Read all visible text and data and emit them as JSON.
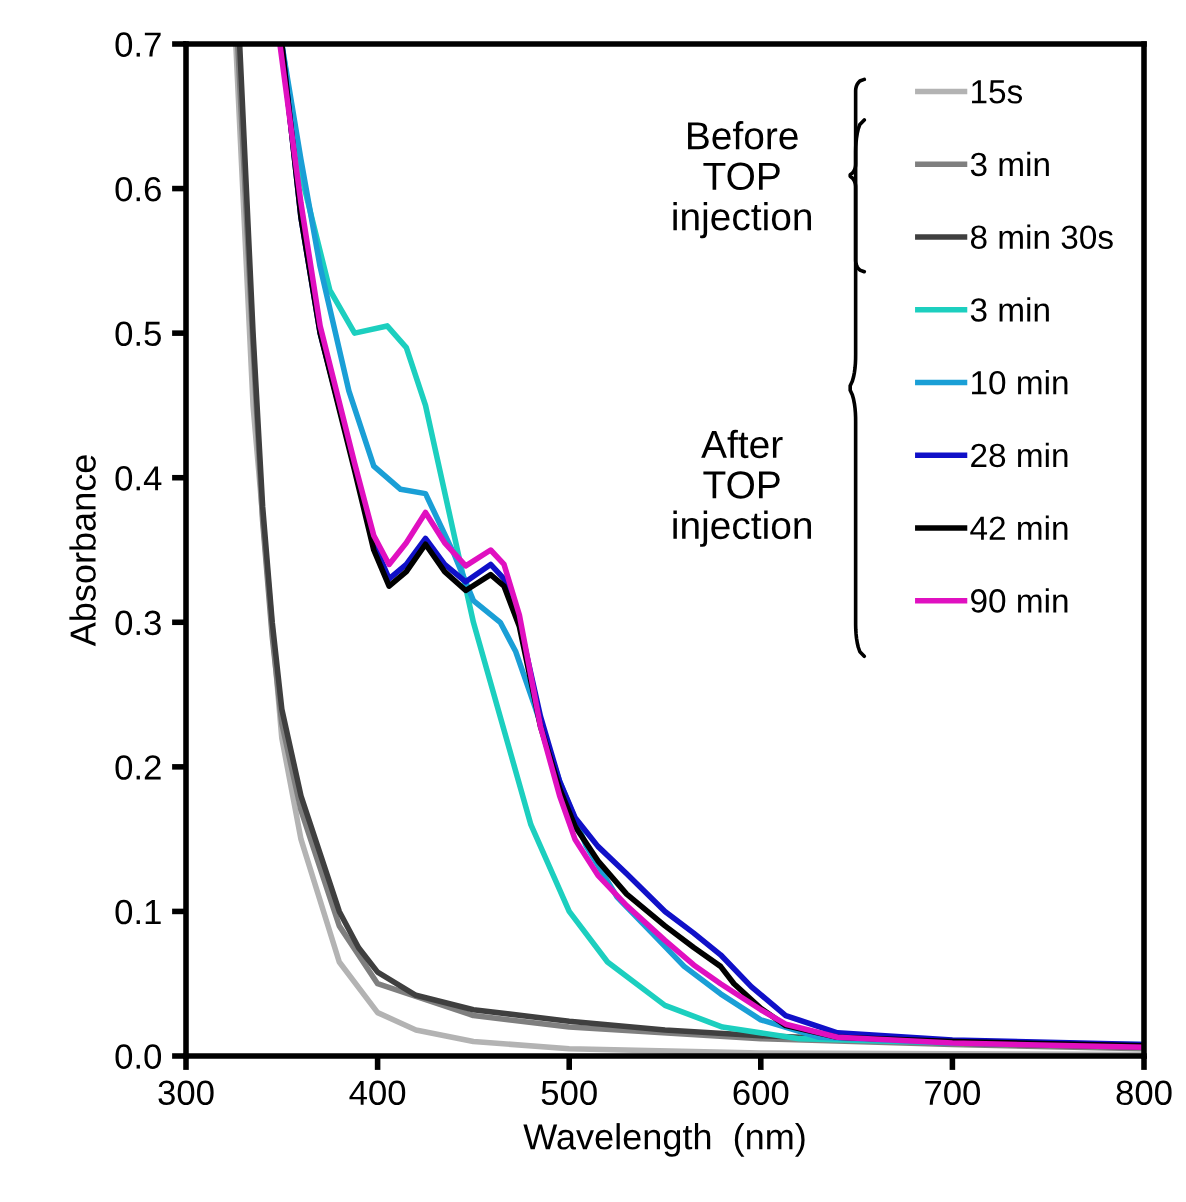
{
  "chart_data": {
    "type": "line",
    "xlabel": "Wavelength  (nm)",
    "ylabel": "Absorbance",
    "xlim": [
      300,
      800
    ],
    "xticks": [
      300,
      400,
      500,
      600,
      700,
      800
    ],
    "ylim": [
      0,
      0.7
    ],
    "yticks": [
      {
        "value": 0,
        "label": "0.0"
      },
      0.1,
      0.2,
      0.3,
      0.4,
      0.5,
      0.6,
      0.7
    ],
    "grid": false,
    "legend": "top right",
    "marker": "none",
    "line_style": "solid",
    "annotations": [
      "Before\nTOP\ninjection",
      "After\nTOP\ninjection"
    ],
    "series": [
      {
        "name": "15s",
        "color": "#b3b3b3",
        "x": [
          326,
          335,
          350,
          360,
          380,
          400,
          420,
          450,
          500,
          600,
          800
        ],
        "values": [
          0.7,
          0.45,
          0.22,
          0.15,
          0.065,
          0.03,
          0.018,
          0.01,
          0.005,
          0.002,
          0.001
        ]
      },
      {
        "name": "3 min",
        "color": "#7f7f7f",
        "x": [
          327,
          335,
          340,
          345,
          350,
          360,
          380,
          400,
          450,
          500,
          600,
          700,
          800
        ],
        "values": [
          0.7,
          0.49,
          0.37,
          0.29,
          0.23,
          0.17,
          0.09,
          0.05,
          0.028,
          0.02,
          0.012,
          0.008,
          0.005
        ]
      },
      {
        "name": "8 min 30s",
        "color": "#3f3f3f",
        "x": [
          328,
          335,
          340,
          345,
          350,
          360,
          370,
          380,
          390,
          400,
          420,
          450,
          500,
          550,
          600,
          700,
          800
        ],
        "values": [
          0.7,
          0.5,
          0.38,
          0.3,
          0.24,
          0.18,
          0.14,
          0.1,
          0.075,
          0.058,
          0.042,
          0.032,
          0.024,
          0.018,
          0.014,
          0.009,
          0.006
        ]
      },
      {
        "name": "3 min",
        "color": "#1ccfbf",
        "x": [
          350,
          360,
          375,
          388,
          405,
          415,
          425,
          440,
          450,
          465,
          480,
          500,
          520,
          550,
          580,
          620,
          700,
          800
        ],
        "values": [
          0.7,
          0.61,
          0.53,
          0.5,
          0.505,
          0.49,
          0.45,
          0.36,
          0.3,
          0.23,
          0.16,
          0.1,
          0.065,
          0.035,
          0.02,
          0.012,
          0.009,
          0.008
        ]
      },
      {
        "name": "10 min",
        "color": "#1a9fd6",
        "x": [
          350,
          360,
          370,
          385,
          398,
          412,
          425,
          440,
          450,
          464,
          472,
          482,
          495,
          509,
          525,
          544,
          560,
          579,
          600,
          630,
          700,
          800
        ],
        "values": [
          0.7,
          0.62,
          0.546,
          0.46,
          0.408,
          0.392,
          0.389,
          0.347,
          0.315,
          0.3,
          0.28,
          0.242,
          0.19,
          0.145,
          0.11,
          0.084,
          0.062,
          0.043,
          0.025,
          0.013,
          0.009,
          0.007
        ]
      },
      {
        "name": "28 min",
        "color": "#1010c8",
        "x": [
          350,
          360,
          370,
          388,
          398,
          406,
          415,
          425,
          435,
          446,
          459,
          466,
          474,
          485,
          495,
          503,
          515,
          530,
          550,
          565,
          579,
          595,
          613,
          640,
          700,
          800
        ],
        "values": [
          0.7,
          0.58,
          0.5,
          0.408,
          0.355,
          0.33,
          0.34,
          0.358,
          0.34,
          0.328,
          0.34,
          0.33,
          0.3,
          0.235,
          0.19,
          0.165,
          0.145,
          0.126,
          0.1,
          0.085,
          0.07,
          0.048,
          0.028,
          0.016,
          0.011,
          0.008
        ]
      },
      {
        "name": "42 min",
        "color": "#000000",
        "x": [
          350,
          360,
          370,
          388,
          398,
          406,
          415,
          425,
          435,
          446,
          459,
          466,
          474,
          485,
          495,
          503,
          515,
          530,
          550,
          565,
          579,
          586,
          600,
          613,
          640,
          700,
          800
        ],
        "values": [
          0.7,
          0.58,
          0.5,
          0.405,
          0.35,
          0.325,
          0.335,
          0.354,
          0.335,
          0.322,
          0.333,
          0.325,
          0.297,
          0.228,
          0.185,
          0.159,
          0.135,
          0.112,
          0.09,
          0.075,
          0.062,
          0.05,
          0.033,
          0.021,
          0.013,
          0.01,
          0.007
        ]
      },
      {
        "name": "90 min",
        "color": "#e010c0",
        "x": [
          349,
          360,
          370,
          388,
          398,
          406,
          415,
          425,
          435,
          446,
          459,
          466,
          474,
          485,
          495,
          503,
          515,
          530,
          550,
          565,
          579,
          600,
          613,
          640,
          700,
          800
        ],
        "values": [
          0.7,
          0.59,
          0.505,
          0.41,
          0.36,
          0.34,
          0.355,
          0.376,
          0.355,
          0.339,
          0.35,
          0.34,
          0.305,
          0.228,
          0.18,
          0.15,
          0.125,
          0.104,
          0.08,
          0.063,
          0.05,
          0.032,
          0.022,
          0.013,
          0.009,
          0.006
        ]
      }
    ]
  }
}
